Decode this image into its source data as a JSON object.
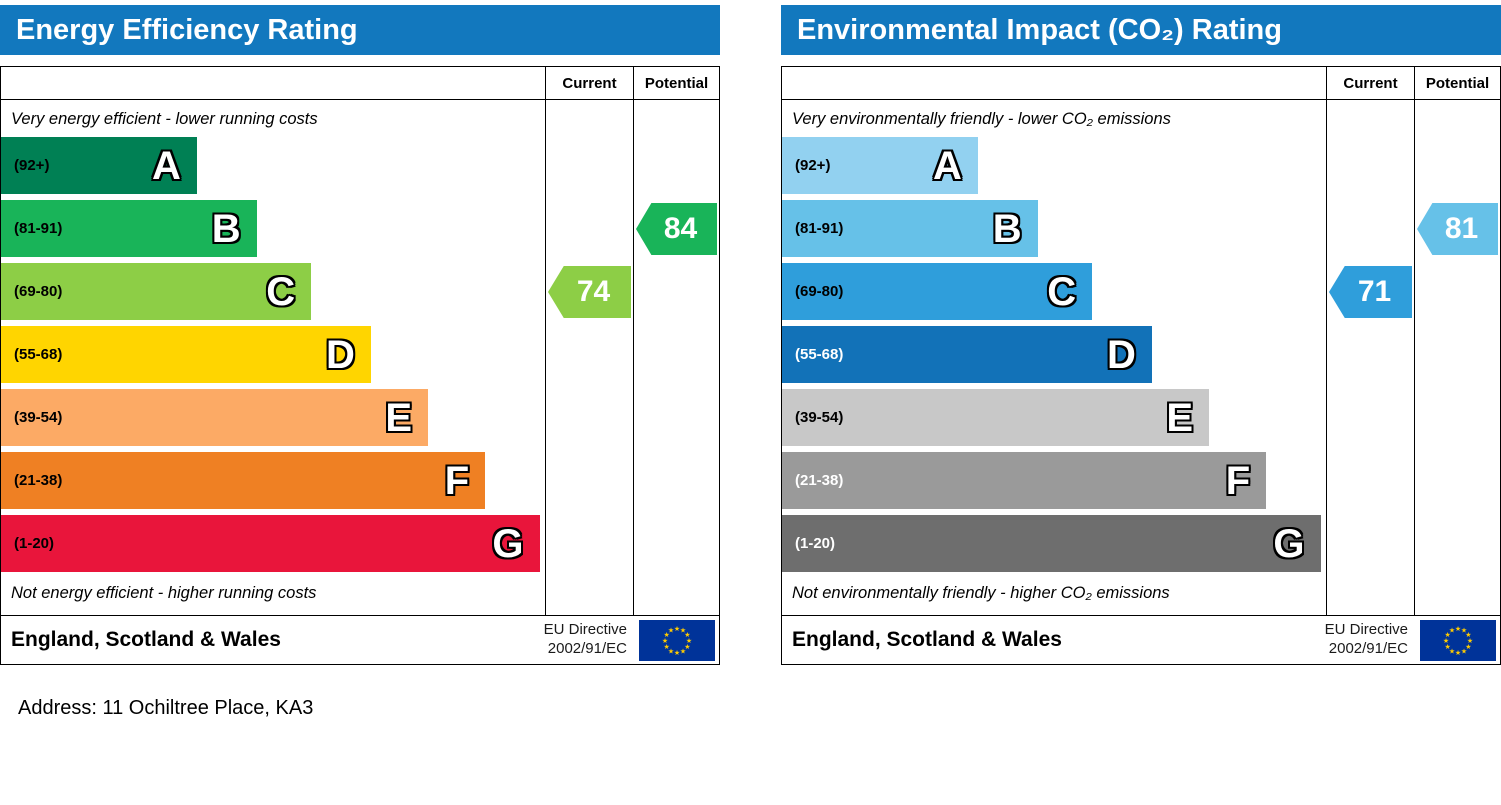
{
  "page": {
    "address_line": "Address: 11 Ochiltree Place, KA3"
  },
  "chart_data": [
    {
      "type": "bar",
      "title": "Energy Efficiency Rating",
      "header_color": "#1278be",
      "columns": {
        "current": "Current",
        "potential": "Potential"
      },
      "top_note": "Very energy efficient - lower running costs",
      "bottom_note": "Not energy efficient - higher running costs",
      "footer": {
        "region": "England, Scotland & Wales",
        "directive": [
          "EU Directive",
          "2002/91/EC"
        ]
      },
      "bands": [
        {
          "letter": "A",
          "range": "(92+)",
          "min": 92,
          "max": 100,
          "color": "#008054",
          "label_color": "#000000",
          "width_pct": 36
        },
        {
          "letter": "B",
          "range": "(81-91)",
          "min": 81,
          "max": 91,
          "color": "#19b459",
          "label_color": "#000000",
          "width_pct": 47
        },
        {
          "letter": "C",
          "range": "(69-80)",
          "min": 69,
          "max": 80,
          "color": "#8dce46",
          "label_color": "#000000",
          "width_pct": 57
        },
        {
          "letter": "D",
          "range": "(55-68)",
          "min": 55,
          "max": 68,
          "color": "#ffd500",
          "label_color": "#000000",
          "width_pct": 68
        },
        {
          "letter": "E",
          "range": "(39-54)",
          "min": 39,
          "max": 54,
          "color": "#fcaa65",
          "label_color": "#000000",
          "width_pct": 78.5
        },
        {
          "letter": "F",
          "range": "(21-38)",
          "min": 21,
          "max": 38,
          "color": "#ef8023",
          "label_color": "#000000",
          "width_pct": 89
        },
        {
          "letter": "G",
          "range": "(1-20)",
          "min": 1,
          "max": 20,
          "color": "#e9153b",
          "label_color": "#000000",
          "width_pct": 99
        }
      ],
      "current": {
        "value": 74,
        "band": "C",
        "band_index": 2,
        "color": "#8dce46"
      },
      "potential": {
        "value": 84,
        "band": "B",
        "band_index": 1,
        "color": "#19b459"
      }
    },
    {
      "type": "bar",
      "title": "Environmental Impact (CO₂) Rating",
      "header_color": "#1278be",
      "columns": {
        "current": "Current",
        "potential": "Potential"
      },
      "top_note": "Very environmentally friendly - lower CO₂ emissions",
      "bottom_note": "Not environmentally friendly - higher CO₂ emissions",
      "footer": {
        "region": "England, Scotland & Wales",
        "directive": [
          "EU Directive",
          "2002/91/EC"
        ]
      },
      "bands": [
        {
          "letter": "A",
          "range": "(92+)",
          "min": 92,
          "max": 100,
          "color": "#92d1f0",
          "label_color": "#000000",
          "width_pct": 36
        },
        {
          "letter": "B",
          "range": "(81-91)",
          "min": 81,
          "max": 91,
          "color": "#66c1e8",
          "label_color": "#000000",
          "width_pct": 47
        },
        {
          "letter": "C",
          "range": "(69-80)",
          "min": 69,
          "max": 80,
          "color": "#2f9edb",
          "label_color": "#000000",
          "width_pct": 57
        },
        {
          "letter": "D",
          "range": "(55-68)",
          "min": 55,
          "max": 68,
          "color": "#1272b8",
          "label_color": "#ffffff",
          "width_pct": 68
        },
        {
          "letter": "E",
          "range": "(39-54)",
          "min": 39,
          "max": 54,
          "color": "#c8c8c8",
          "label_color": "#000000",
          "width_pct": 78.5
        },
        {
          "letter": "F",
          "range": "(21-38)",
          "min": 21,
          "max": 38,
          "color": "#9a9a9a",
          "label_color": "#ffffff",
          "width_pct": 89
        },
        {
          "letter": "G",
          "range": "(1-20)",
          "min": 1,
          "max": 20,
          "color": "#6e6e6e",
          "label_color": "#ffffff",
          "width_pct": 99
        }
      ],
      "current": {
        "value": 71,
        "band": "C",
        "band_index": 2,
        "color": "#2f9edb"
      },
      "potential": {
        "value": 81,
        "band": "B",
        "band_index": 1,
        "color": "#66c1e8"
      }
    }
  ]
}
